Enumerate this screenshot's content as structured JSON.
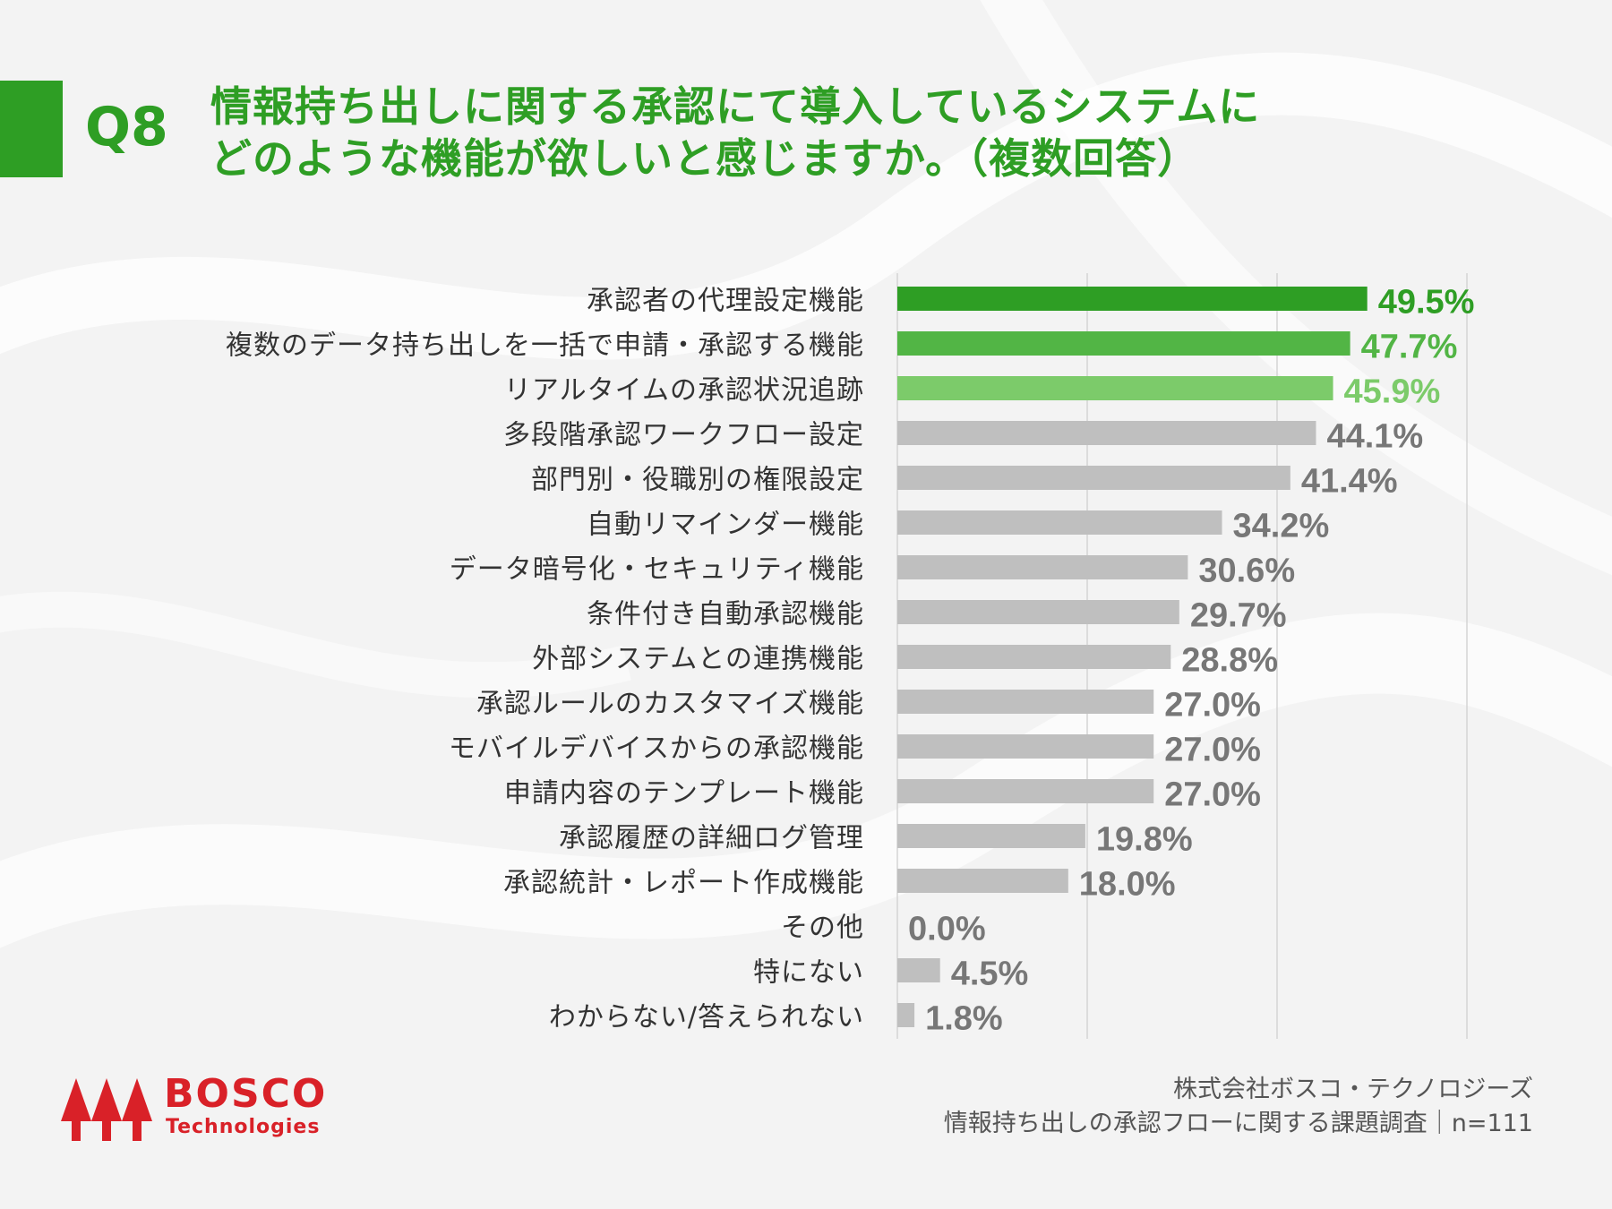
{
  "header": {
    "question_number": "Q8",
    "title_line1": "情報持ち出しに関する承認にて導入しているシステムに",
    "title_line2": "どのような機能が欲しいと感じますか。（複数回答）"
  },
  "colors": {
    "accent": "#2e9e24",
    "bar_top1": "#2e9e24",
    "bar_top2": "#52b545",
    "bar_top3": "#7ccb6a",
    "bar_other": "#bfbfbf",
    "label_other": "#777777",
    "logo_red": "#d92128"
  },
  "chart_data": {
    "type": "bar",
    "orientation": "horizontal",
    "title": "情報持ち出しに関する承認にて導入しているシステムにどのような機能が欲しいと感じますか。（複数回答）",
    "xlim": [
      0,
      60
    ],
    "grid_at": [
      0,
      20,
      40,
      60
    ],
    "grid": true,
    "unit": "%",
    "categories": [
      "承認者の代理設定機能",
      "複数のデータ持ち出しを一括で申請・承認する機能",
      "リアルタイムの承認状況追跡",
      "多段階承認ワークフロー設定",
      "部門別・役職別の権限設定",
      "自動リマインダー機能",
      "データ暗号化・セキュリティ機能",
      "条件付き自動承認機能",
      "外部システムとの連携機能",
      "承認ルールのカスタマイズ機能",
      "モバイルデバイスからの承認機能",
      "申請内容のテンプレート機能",
      "承認履歴の詳細ログ管理",
      "承認統計・レポート作成機能",
      "その他",
      "特にない",
      "わからない/答えられない"
    ],
    "values": [
      49.5,
      47.7,
      45.9,
      44.1,
      41.4,
      34.2,
      30.6,
      29.7,
      28.8,
      27.0,
      27.0,
      27.0,
      19.8,
      18.0,
      0.0,
      4.5,
      1.8
    ],
    "value_labels": [
      "49.5%",
      "47.7%",
      "45.9%",
      "44.1%",
      "41.4%",
      "34.2%",
      "30.6%",
      "29.7%",
      "28.8%",
      "27.0%",
      "27.0%",
      "27.0%",
      "19.8%",
      "18.0%",
      "0.0%",
      "4.5%",
      "1.8%"
    ]
  },
  "logo": {
    "name": "BOSCO",
    "sub": "Technologies"
  },
  "footer": {
    "company": "株式会社ボスコ・テクノロジーズ",
    "survey": "情報持ち出しの承認フローに関する課題調査｜n=111"
  }
}
